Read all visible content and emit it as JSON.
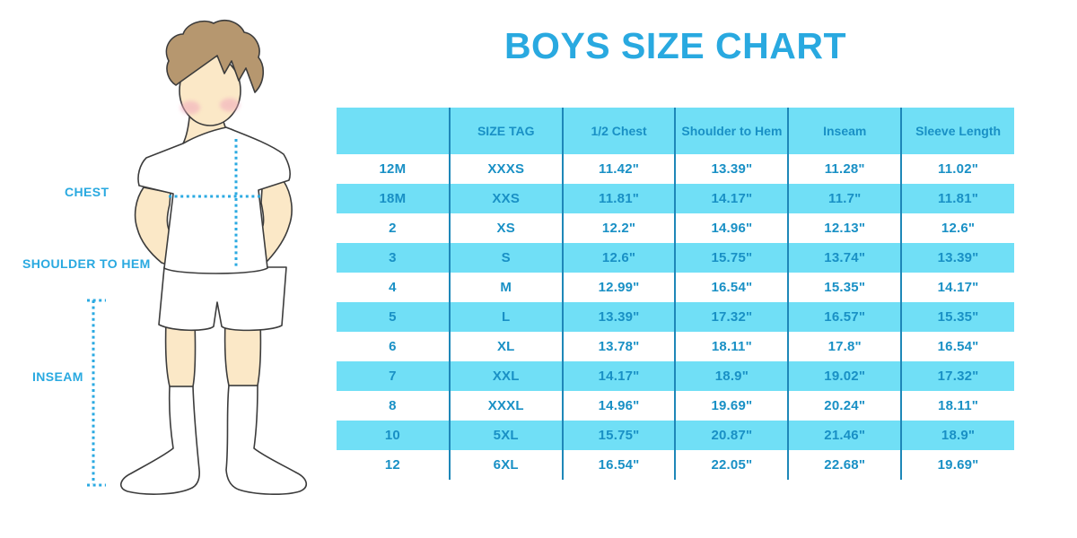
{
  "title": "BOYS SIZE CHART",
  "figure": {
    "labels": {
      "chest": "CHEST",
      "shoulder_to_hem": "SHOULDER TO HEM",
      "inseam": "INSEAM"
    }
  },
  "chart_data": {
    "type": "table",
    "title": "BOYS SIZE CHART",
    "columns": [
      "",
      "SIZE TAG",
      "1/2 Chest",
      "Shoulder to Hem",
      "Inseam",
      "Sleeve Length"
    ],
    "rows": [
      [
        "12M",
        "XXXS",
        "11.42\"",
        "13.39\"",
        "11.28\"",
        "11.02\""
      ],
      [
        "18M",
        "XXS",
        "11.81\"",
        "14.17\"",
        "11.7\"",
        "11.81\""
      ],
      [
        "2",
        "XS",
        "12.2\"",
        "14.96\"",
        "12.13\"",
        "12.6\""
      ],
      [
        "3",
        "S",
        "12.6\"",
        "15.75\"",
        "13.74\"",
        "13.39\""
      ],
      [
        "4",
        "M",
        "12.99\"",
        "16.54\"",
        "15.35\"",
        "14.17\""
      ],
      [
        "5",
        "L",
        "13.39\"",
        "17.32\"",
        "16.57\"",
        "15.35\""
      ],
      [
        "6",
        "XL",
        "13.78\"",
        "18.11\"",
        "17.8\"",
        "16.54\""
      ],
      [
        "7",
        "XXL",
        "14.17\"",
        "18.9\"",
        "19.02\"",
        "17.32\""
      ],
      [
        "8",
        "XXXL",
        "14.96\"",
        "19.69\"",
        "20.24\"",
        "18.11\""
      ],
      [
        "10",
        "5XL",
        "15.75\"",
        "20.87\"",
        "21.46\"",
        "18.9\""
      ],
      [
        "12",
        "6XL",
        "16.54\"",
        "22.05\"",
        "22.68\"",
        "19.69\""
      ]
    ],
    "row_striping": "white / light-blue alternating, header light-blue",
    "units": "inches"
  },
  "colors": {
    "title_blue": "#29A9E0",
    "table_text_blue": "#1990C5",
    "header_bg": "#70DFF6",
    "row_alt_bg": "#70DFF6",
    "row_bg": "#FFFFFF",
    "grid_line": "#1E87B8",
    "dotted_line": "#2BAAE2",
    "skin": "#FBE8C7",
    "hair": "#B6976F",
    "cheek": "#F0A8BC",
    "outline": "#3C3C3C",
    "garment_white": "#FFFFFF"
  }
}
